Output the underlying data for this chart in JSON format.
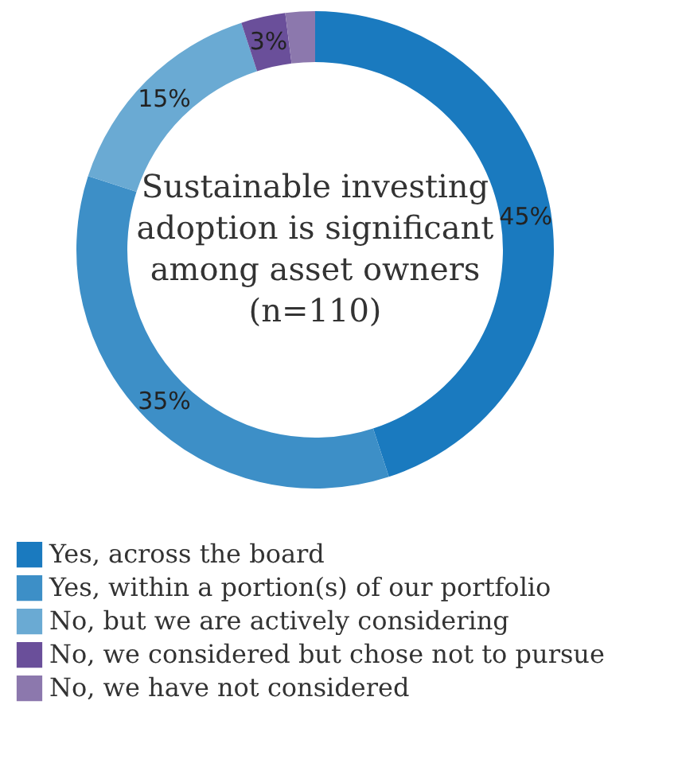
{
  "chart_data": {
    "type": "donut",
    "title": "Sustainable investing adoption is significant among asset owners (n=110)",
    "categories": [
      "Yes, across the board",
      "Yes, within a portion(s) of our portfolio",
      "No, but we are actively considering",
      "No, we considered but chose not to pursue",
      "No, we have not considered"
    ],
    "values": [
      45,
      35,
      15,
      3,
      2
    ],
    "value_labels": [
      "45%",
      "35%",
      "15%",
      "3%",
      null
    ],
    "colors": [
      "#1a7abf",
      "#3d8fc7",
      "#6aaad3",
      "#6a4f9a",
      "#8c78ad"
    ],
    "legend": "bottom"
  }
}
